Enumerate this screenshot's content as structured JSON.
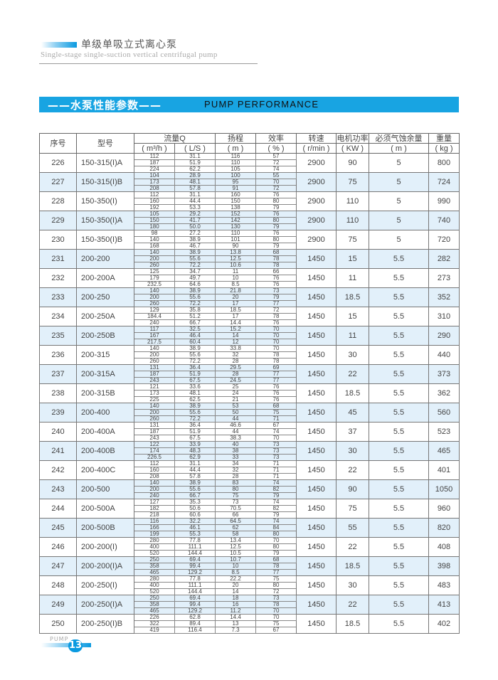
{
  "header": {
    "title": "单级单吸立式离心泵",
    "subtitle": "Single-stage single-suction vertical centrifugal pump"
  },
  "banner": {
    "title_cn": "——水泵性能参数——",
    "title_en": "PUMP PERFORMANCE",
    "color": "#18a4e2"
  },
  "table": {
    "headers": {
      "no": "序号",
      "model": "型号",
      "flow": "流量Q",
      "flow_m3h": "( m³/h )",
      "flow_ls": "( L/S )",
      "head": "扬程",
      "head_unit": "( m )",
      "eff": "效率",
      "eff_unit": "( % )",
      "speed": "转速",
      "speed_unit": "( r/min )",
      "power": "电机功率",
      "power_unit": "( KW )",
      "npsh": "必须气蚀余量",
      "npsh_unit": "( m )",
      "weight": "重量",
      "weight_unit": "( kg )"
    },
    "rows": [
      {
        "no": "226",
        "model": "150-315(I)A",
        "q": [
          "112",
          "187",
          "224"
        ],
        "ls": [
          "31.1",
          "51.9",
          "62.2"
        ],
        "h": [
          "116",
          "110",
          "105"
        ],
        "e": [
          "57",
          "72",
          "74"
        ],
        "speed": "2900",
        "power": "90",
        "npsh": "5",
        "weight": "800"
      },
      {
        "no": "227",
        "model": "150-315(I)B",
        "q": [
          "104",
          "173",
          "208"
        ],
        "ls": [
          "28.9",
          "48.1",
          "57.8"
        ],
        "h": [
          "100",
          "95",
          "91"
        ],
        "e": [
          "55",
          "70",
          "72"
        ],
        "speed": "2900",
        "power": "75",
        "npsh": "5",
        "weight": "724"
      },
      {
        "no": "228",
        "model": "150-350(I)",
        "q": [
          "112",
          "160",
          "192"
        ],
        "ls": [
          "31.1",
          "44.4",
          "53.3"
        ],
        "h": [
          "160",
          "150",
          "138"
        ],
        "e": [
          "76",
          "80",
          "79"
        ],
        "speed": "2900",
        "power": "110",
        "npsh": "5",
        "weight": "990"
      },
      {
        "no": "229",
        "model": "150-350(I)A",
        "q": [
          "105",
          "150",
          "180"
        ],
        "ls": [
          "29.2",
          "41.7",
          "50.0"
        ],
        "h": [
          "152",
          "142",
          "130"
        ],
        "e": [
          "76",
          "80",
          "79"
        ],
        "speed": "2900",
        "power": "110",
        "npsh": "5",
        "weight": "740"
      },
      {
        "no": "230",
        "model": "150-350(I)B",
        "q": [
          "98",
          "140",
          "168"
        ],
        "ls": [
          "27.2",
          "38.9",
          "46.7"
        ],
        "h": [
          "110",
          "101",
          "90"
        ],
        "e": [
          "76",
          "80",
          "79"
        ],
        "speed": "2900",
        "power": "75",
        "npsh": "5",
        "weight": "720"
      },
      {
        "no": "231",
        "model": "200-200",
        "q": [
          "140",
          "200",
          "260"
        ],
        "ls": [
          "38.9",
          "55.6",
          "72.2"
        ],
        "h": [
          "13.8",
          "12.5",
          "10.6"
        ],
        "e": [
          "68",
          "78",
          "78"
        ],
        "speed": "1450",
        "power": "15",
        "npsh": "5.5",
        "weight": "282"
      },
      {
        "no": "232",
        "model": "200-200A",
        "q": [
          "125",
          "179",
          "232.5"
        ],
        "ls": [
          "34.7",
          "49.7",
          "64.6"
        ],
        "h": [
          "11",
          "10",
          "8.5"
        ],
        "e": [
          "66",
          "76",
          "76"
        ],
        "speed": "1450",
        "power": "11",
        "npsh": "5.5",
        "weight": "273"
      },
      {
        "no": "233",
        "model": "200-250",
        "q": [
          "140",
          "200",
          "260"
        ],
        "ls": [
          "38.9",
          "55.6",
          "72.2"
        ],
        "h": [
          "21.8",
          "20",
          "17"
        ],
        "e": [
          "73",
          "79",
          "77"
        ],
        "speed": "1450",
        "power": "18.5",
        "npsh": "5.5",
        "weight": "352"
      },
      {
        "no": "234",
        "model": "200-250A",
        "q": [
          "129",
          "184.4",
          "240"
        ],
        "ls": [
          "35.8",
          "51.2",
          "66.7"
        ],
        "h": [
          "18.5",
          "17",
          "14.4"
        ],
        "e": [
          "72",
          "78",
          "76"
        ],
        "speed": "1450",
        "power": "15",
        "npsh": "5.5",
        "weight": "310"
      },
      {
        "no": "235",
        "model": "200-250B",
        "q": [
          "117",
          "167",
          "217.5"
        ],
        "ls": [
          "32.5",
          "46.4",
          "60.4"
        ],
        "h": [
          "15.2",
          "14",
          "12"
        ],
        "e": [
          "70",
          "70",
          "70"
        ],
        "speed": "1450",
        "power": "11",
        "npsh": "5.5",
        "weight": "290"
      },
      {
        "no": "236",
        "model": "200-315",
        "q": [
          "140",
          "200",
          "260"
        ],
        "ls": [
          "38.9",
          "55.6",
          "72.2"
        ],
        "h": [
          "33.8",
          "32",
          "28"
        ],
        "e": [
          "70",
          "78",
          "78"
        ],
        "speed": "1450",
        "power": "30",
        "npsh": "5.5",
        "weight": "440"
      },
      {
        "no": "237",
        "model": "200-315A",
        "q": [
          "131",
          "187",
          "243"
        ],
        "ls": [
          "36.4",
          "51.9",
          "67.5"
        ],
        "h": [
          "29.5",
          "28",
          "24.5"
        ],
        "e": [
          "69",
          "77",
          "77"
        ],
        "speed": "1450",
        "power": "22",
        "npsh": "5.5",
        "weight": "373"
      },
      {
        "no": "238",
        "model": "200-315B",
        "q": [
          "121",
          "173",
          "225"
        ],
        "ls": [
          "33.6",
          "48.1",
          "62.5"
        ],
        "h": [
          "25",
          "24",
          "21"
        ],
        "e": [
          "76",
          "76",
          "76"
        ],
        "speed": "1450",
        "power": "18.5",
        "npsh": "5.5",
        "weight": "362"
      },
      {
        "no": "239",
        "model": "200-400",
        "q": [
          "140",
          "200",
          "260"
        ],
        "ls": [
          "38.9",
          "55.6",
          "72.2"
        ],
        "h": [
          "53",
          "50",
          "44"
        ],
        "e": [
          "68",
          "75",
          "71"
        ],
        "speed": "1450",
        "power": "45",
        "npsh": "5.5",
        "weight": "560"
      },
      {
        "no": "240",
        "model": "200-400A",
        "q": [
          "131",
          "187",
          "243"
        ],
        "ls": [
          "36.4",
          "51.9",
          "67.5"
        ],
        "h": [
          "46.6",
          "44",
          "38.3"
        ],
        "e": [
          "67",
          "74",
          "70"
        ],
        "speed": "1450",
        "power": "37",
        "npsh": "5.5",
        "weight": "523"
      },
      {
        "no": "241",
        "model": "200-400B",
        "q": [
          "122",
          "174",
          "226.5"
        ],
        "ls": [
          "33.9",
          "48.3",
          "62.9"
        ],
        "h": [
          "40",
          "38",
          "33"
        ],
        "e": [
          "73",
          "73",
          "73"
        ],
        "speed": "1450",
        "power": "30",
        "npsh": "5.5",
        "weight": "465"
      },
      {
        "no": "242",
        "model": "200-400C",
        "q": [
          "112",
          "160",
          "208"
        ],
        "ls": [
          "31.1",
          "44.4",
          "57.8"
        ],
        "h": [
          "34",
          "32",
          "28"
        ],
        "e": [
          "71",
          "71",
          "71"
        ],
        "speed": "1450",
        "power": "22",
        "npsh": "5.5",
        "weight": "401"
      },
      {
        "no": "243",
        "model": "200-500",
        "q": [
          "140",
          "200",
          "240"
        ],
        "ls": [
          "38.9",
          "55.6",
          "66.7"
        ],
        "h": [
          "83",
          "80",
          "75"
        ],
        "e": [
          "74",
          "82",
          "79"
        ],
        "speed": "1450",
        "power": "90",
        "npsh": "5.5",
        "weight": "1050"
      },
      {
        "no": "244",
        "model": "200-500A",
        "q": [
          "127",
          "182",
          "218"
        ],
        "ls": [
          "35.3",
          "50.6",
          "60.6"
        ],
        "h": [
          "73",
          "70.5",
          "66"
        ],
        "e": [
          "74",
          "82",
          "79"
        ],
        "speed": "1450",
        "power": "75",
        "npsh": "5.5",
        "weight": "960"
      },
      {
        "no": "245",
        "model": "200-500B",
        "q": [
          "116",
          "166",
          "199"
        ],
        "ls": [
          "32.2",
          "46.1",
          "55.3"
        ],
        "h": [
          "64.5",
          "62",
          "58"
        ],
        "e": [
          "74",
          "84",
          "80"
        ],
        "speed": "1450",
        "power": "55",
        "npsh": "5.5",
        "weight": "820"
      },
      {
        "no": "246",
        "model": "200-200(I)",
        "q": [
          "280",
          "400",
          "520"
        ],
        "ls": [
          "77.8",
          "111.1",
          "144.4"
        ],
        "h": [
          "13.4",
          "12.5",
          "10.5"
        ],
        "e": [
          "70",
          "80",
          "79"
        ],
        "speed": "1450",
        "power": "22",
        "npsh": "5.5",
        "weight": "408"
      },
      {
        "no": "247",
        "model": "200-200(I)A",
        "q": [
          "250",
          "358",
          "465"
        ],
        "ls": [
          "69.4",
          "99.4",
          "129.2"
        ],
        "h": [
          "10.7",
          "10",
          "8.5"
        ],
        "e": [
          "68",
          "78",
          "77"
        ],
        "speed": "1450",
        "power": "18.5",
        "npsh": "5.5",
        "weight": "398"
      },
      {
        "no": "248",
        "model": "200-250(I)",
        "q": [
          "280",
          "400",
          "520"
        ],
        "ls": [
          "77.8",
          "111.1",
          "144.4"
        ],
        "h": [
          "22.2",
          "20",
          "14"
        ],
        "e": [
          "75",
          "80",
          "72"
        ],
        "speed": "1450",
        "power": "30",
        "npsh": "5.5",
        "weight": "483"
      },
      {
        "no": "249",
        "model": "200-250(I)A",
        "q": [
          "250",
          "358",
          "465"
        ],
        "ls": [
          "69.4",
          "99.4",
          "129.2"
        ],
        "h": [
          "18",
          "16",
          "11.2"
        ],
        "e": [
          "73",
          "78",
          "70"
        ],
        "speed": "1450",
        "power": "22",
        "npsh": "5.5",
        "weight": "413"
      },
      {
        "no": "250",
        "model": "200-250(I)B",
        "q": [
          "226",
          "322",
          "419"
        ],
        "ls": [
          "62.8",
          "89.4",
          "116.4"
        ],
        "h": [
          "14.4",
          "13",
          "7.3"
        ],
        "e": [
          "70",
          "75",
          "67"
        ],
        "speed": "1450",
        "power": "18.5",
        "npsh": "5.5",
        "weight": "402"
      }
    ]
  },
  "footer": {
    "label": "PUMP",
    "page_number": "13"
  }
}
